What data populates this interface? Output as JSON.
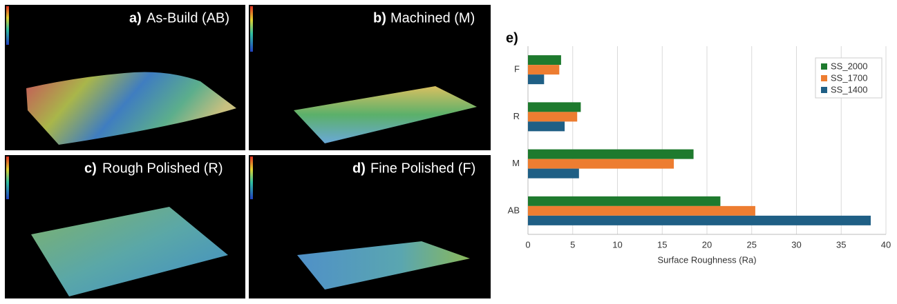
{
  "panels": [
    {
      "label": "a)",
      "title": "As-Build (AB)"
    },
    {
      "label": "b)",
      "title": "Machined (M)"
    },
    {
      "label": "c)",
      "title": "Rough Polished (R)"
    },
    {
      "label": "d)",
      "title": "Fine Polished (F)"
    }
  ],
  "chart_data": {
    "type": "hbar",
    "panel_label": "e)",
    "categories": [
      "F",
      "R",
      "M",
      "AB"
    ],
    "series": [
      {
        "name": "SS_2000",
        "color": "#1e7a2e",
        "values": [
          3.7,
          5.9,
          18.5,
          21.5
        ]
      },
      {
        "name": "SS_1700",
        "color": "#ed7d31",
        "values": [
          3.5,
          5.5,
          16.3,
          25.4
        ]
      },
      {
        "name": "SS_1400",
        "color": "#1f5f85",
        "values": [
          1.8,
          4.1,
          5.7,
          38.3
        ]
      }
    ],
    "x_label": "Surface Roughness (Ra)",
    "xlim": [
      0,
      40
    ],
    "xticks": [
      0,
      5,
      10,
      15,
      20,
      25,
      30,
      35,
      40
    ],
    "grid": true,
    "legend": "top-right"
  }
}
